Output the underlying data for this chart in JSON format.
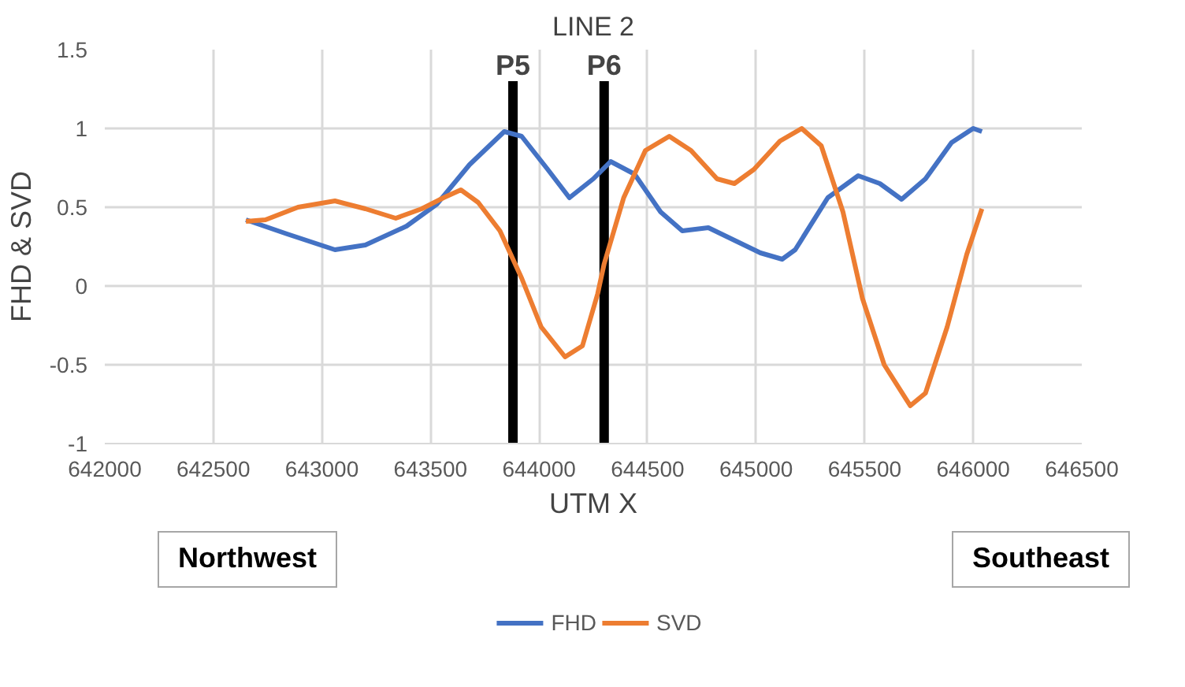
{
  "chart_data": {
    "type": "line",
    "title": "LINE 2",
    "xlabel": "UTM X",
    "ylabel": "FHD & SVD",
    "xlim": [
      642000,
      646500
    ],
    "xticks": [
      642000,
      642500,
      643000,
      643500,
      644000,
      644500,
      645000,
      645500,
      646000,
      646500
    ],
    "ylim": [
      -1,
      1.5
    ],
    "yticks": [
      -1,
      -0.5,
      0,
      0.5,
      1,
      1.5
    ],
    "grid": true,
    "legend": "bottom",
    "marker": "none",
    "line_style": "solid",
    "series": [
      {
        "name": "FHD",
        "color": "#4472c4",
        "x": [
          642650,
          642840,
          643060,
          643200,
          643390,
          643530,
          643680,
          643840,
          643920,
          644040,
          644140,
          644250,
          644330,
          644440,
          644560,
          644660,
          644780,
          644900,
          645020,
          645120,
          645180,
          645330,
          645470,
          645570,
          645670,
          645780,
          645900,
          646000,
          646040
        ],
        "values": [
          0.42,
          0.33,
          0.23,
          0.26,
          0.38,
          0.52,
          0.77,
          0.98,
          0.95,
          0.74,
          0.56,
          0.68,
          0.79,
          0.71,
          0.47,
          0.35,
          0.37,
          0.29,
          0.21,
          0.17,
          0.23,
          0.56,
          0.7,
          0.65,
          0.55,
          0.68,
          0.91,
          1.0,
          0.98
        ]
      },
      {
        "name": "SVD",
        "color": "#ed7d31",
        "x": [
          642650,
          642740,
          642890,
          643060,
          643200,
          643340,
          643460,
          643560,
          643640,
          643720,
          643820,
          643920,
          644010,
          644120,
          644200,
          644270,
          644300,
          644390,
          644490,
          644600,
          644700,
          644820,
          644900,
          644990,
          645110,
          645210,
          645300,
          645400,
          645490,
          645590,
          645710,
          645780,
          645880,
          645970,
          646040
        ],
        "values": [
          0.41,
          0.42,
          0.5,
          0.54,
          0.49,
          0.43,
          0.49,
          0.56,
          0.61,
          0.53,
          0.35,
          0.05,
          -0.26,
          -0.45,
          -0.38,
          -0.05,
          0.14,
          0.56,
          0.86,
          0.95,
          0.86,
          0.68,
          0.65,
          0.74,
          0.92,
          1.0,
          0.89,
          0.47,
          -0.08,
          -0.5,
          -0.76,
          -0.68,
          -0.26,
          0.2,
          0.49
        ]
      }
    ],
    "ref_lines": [
      {
        "axis": "x",
        "value": 643880,
        "label": "P5",
        "color": "#000000"
      },
      {
        "axis": "x",
        "value": 644300,
        "label": "P6",
        "color": "#000000"
      }
    ],
    "annotations": [
      "Northwest",
      "Southeast"
    ]
  }
}
